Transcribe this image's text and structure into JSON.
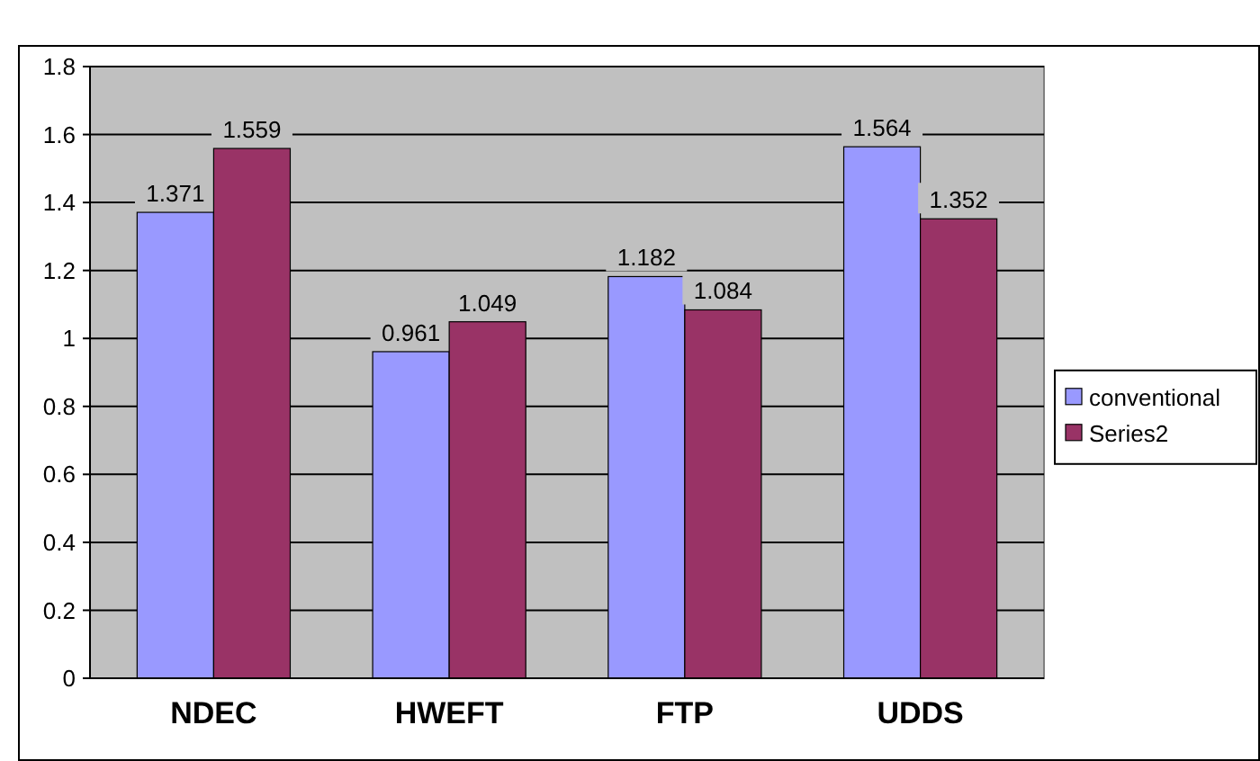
{
  "chart_data": {
    "type": "bar",
    "categories": [
      "NDEC",
      "HWEFT",
      "FTP",
      "UDDS"
    ],
    "series": [
      {
        "name": "conventional",
        "color": "#9999ff",
        "values": [
          1.371,
          0.961,
          1.182,
          1.564
        ]
      },
      {
        "name": "Series2",
        "color": "#993366",
        "values": [
          1.559,
          1.049,
          1.084,
          1.352
        ]
      }
    ],
    "ylim": [
      0,
      1.8
    ],
    "yticks": [
      0,
      0.2,
      0.4,
      0.6,
      0.8,
      1,
      1.2,
      1.4,
      1.6,
      1.8
    ],
    "grid": "y",
    "legend": "right",
    "data_labels": true
  }
}
